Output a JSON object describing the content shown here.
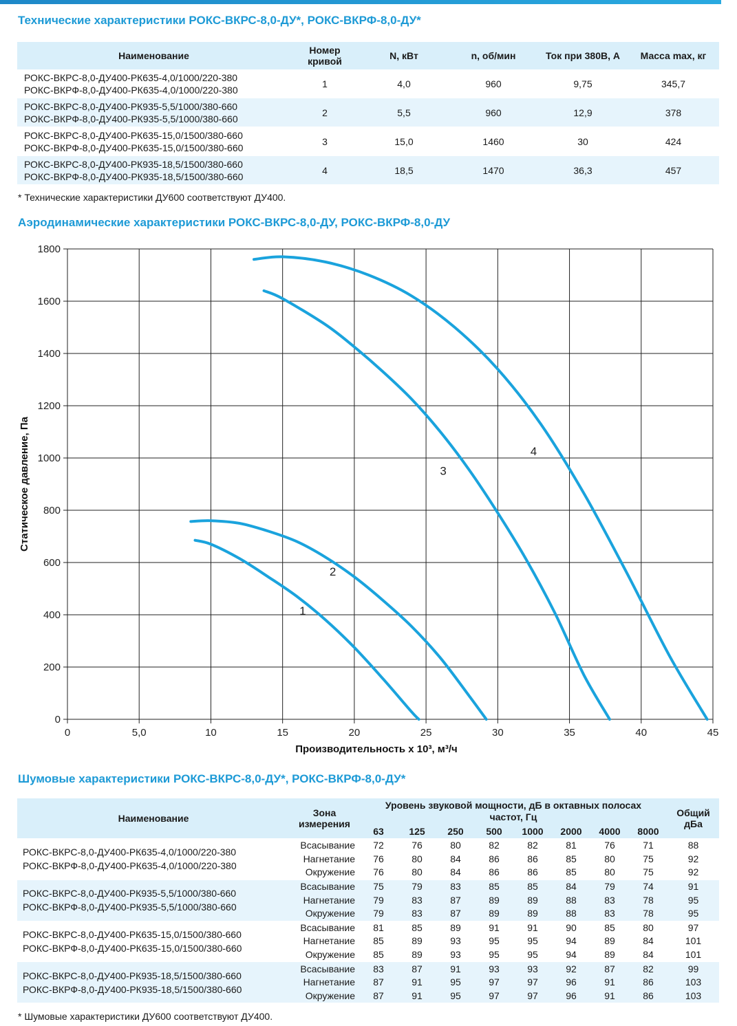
{
  "tech": {
    "title": "Технические характеристики РОКС-ВКРС-8,0-ДУ*, РОКС-ВКРФ-8,0-ДУ*",
    "headers": {
      "name": "Наименование",
      "curve_line1": "Номер",
      "curve_line2": "кривой",
      "power": "N, кВт",
      "rpm": "n, об/мин",
      "current": "Ток при 380В, А",
      "mass": "Масса max, кг"
    },
    "rows": [
      {
        "name1": "РОКС-ВКРС-8,0-ДУ400-РК635-4,0/1000/220-380",
        "name2": "РОКС-ВКРФ-8,0-ДУ400-РК635-4,0/1000/220-380",
        "curve": "1",
        "power": "4,0",
        "rpm": "960",
        "current": "9,75",
        "mass": "345,7"
      },
      {
        "name1": "РОКС-ВКРС-8,0-ДУ400-РК935-5,5/1000/380-660",
        "name2": "РОКС-ВКРФ-8,0-ДУ400-РК935-5,5/1000/380-660",
        "curve": "2",
        "power": "5,5",
        "rpm": "960",
        "current": "12,9",
        "mass": "378"
      },
      {
        "name1": "РОКС-ВКРС-8,0-ДУ400-РК635-15,0/1500/380-660",
        "name2": "РОКС-ВКРФ-8,0-ДУ400-РК635-15,0/1500/380-660",
        "curve": "3",
        "power": "15,0",
        "rpm": "1460",
        "current": "30",
        "mass": "424"
      },
      {
        "name1": "РОКС-ВКРС-8,0-ДУ400-РК935-18,5/1500/380-660",
        "name2": "РОКС-ВКРФ-8,0-ДУ400-РК935-18,5/1500/380-660",
        "curve": "4",
        "power": "18,5",
        "rpm": "1470",
        "current": "36,3",
        "mass": "457"
      }
    ],
    "footnote": "* Технические характеристики ДУ600 соответствуют ДУ400."
  },
  "aero": {
    "title": "Аэродинамические характеристики РОКС-ВКРС-8,0-ДУ, РОКС-ВКРФ-8,0-ДУ"
  },
  "chart_data": {
    "type": "line",
    "xlabel": "Производительность x 10³, м³/ч",
    "ylabel": "Статическое давление, Па",
    "xlim": [
      0,
      45
    ],
    "ylim": [
      0,
      1800
    ],
    "x_ticks": [
      "0",
      "5,0",
      "10",
      "15",
      "20",
      "25",
      "30",
      "35",
      "40",
      "45"
    ],
    "y_ticks": [
      "0",
      "200",
      "400",
      "600",
      "800",
      "1000",
      "1200",
      "1400",
      "1600",
      "1800"
    ],
    "grid": true,
    "line_color": "#1aa3dd",
    "series": [
      {
        "name": "1",
        "label_at": [
          16.4,
          400
        ],
        "x": [
          8.9,
          10,
          12,
          14,
          16,
          18,
          20,
          22,
          24,
          24.5
        ],
        "y": [
          685,
          670,
          615,
          545,
          470,
          380,
          275,
          155,
          28,
          0
        ]
      },
      {
        "name": "2",
        "label_at": [
          18.5,
          550
        ],
        "x": [
          8.6,
          10,
          12,
          14,
          16,
          18,
          20,
          22,
          24,
          26,
          28,
          29.2
        ],
        "y": [
          757,
          760,
          750,
          720,
          680,
          620,
          545,
          455,
          355,
          235,
          90,
          0
        ]
      },
      {
        "name": "3",
        "label_at": [
          26.2,
          935
        ],
        "x": [
          13.7,
          15,
          18,
          20,
          22,
          24,
          26,
          28,
          30,
          32,
          34,
          36,
          37.8
        ],
        "y": [
          1640,
          1610,
          1510,
          1425,
          1330,
          1225,
          1100,
          955,
          790,
          610,
          405,
          170,
          0
        ]
      },
      {
        "name": "4",
        "label_at": [
          32.5,
          1010
        ],
        "x": [
          13,
          15,
          18,
          21,
          24,
          27,
          30,
          33,
          36,
          39,
          42,
          44.6
        ],
        "y": [
          1760,
          1770,
          1750,
          1700,
          1620,
          1500,
          1340,
          1130,
          865,
          560,
          240,
          0
        ]
      }
    ]
  },
  "noise": {
    "title": "Шумовые характеристики РОКС-ВКРС-8,0-ДУ*, РОКС-ВКРФ-8,0-ДУ*",
    "headers": {
      "name": "Наименование",
      "zone_line1": "Зона",
      "zone_line2": "измерения",
      "level_line1": "Уровень звуковой мощности, дБ в октавных полосах",
      "level_line2": "частот, Гц",
      "total_line1": "Общий",
      "total_line2": "дБа"
    },
    "freqs": [
      "63",
      "125",
      "250",
      "500",
      "1000",
      "2000",
      "4000",
      "8000"
    ],
    "groups": [
      {
        "name1": "РОКС-ВКРС-8,0-ДУ400-РК635-4,0/1000/220-380",
        "name2": "РОКС-ВКРФ-8,0-ДУ400-РК635-4,0/1000/220-380",
        "rows": [
          {
            "zone": "Всасывание",
            "values": [
              "72",
              "76",
              "80",
              "82",
              "82",
              "81",
              "76",
              "71"
            ],
            "total": "88"
          },
          {
            "zone": "Нагнетание",
            "values": [
              "76",
              "80",
              "84",
              "86",
              "86",
              "85",
              "80",
              "75"
            ],
            "total": "92"
          },
          {
            "zone": "Окружение",
            "values": [
              "76",
              "80",
              "84",
              "86",
              "86",
              "85",
              "80",
              "75"
            ],
            "total": "92"
          }
        ]
      },
      {
        "name1": "РОКС-ВКРС-8,0-ДУ400-РК935-5,5/1000/380-660",
        "name2": "РОКС-ВКРФ-8,0-ДУ400-РК935-5,5/1000/380-660",
        "rows": [
          {
            "zone": "Всасывание",
            "values": [
              "75",
              "79",
              "83",
              "85",
              "85",
              "84",
              "79",
              "74"
            ],
            "total": "91"
          },
          {
            "zone": "Нагнетание",
            "values": [
              "79",
              "83",
              "87",
              "89",
              "89",
              "88",
              "83",
              "78"
            ],
            "total": "95"
          },
          {
            "zone": "Окружение",
            "values": [
              "79",
              "83",
              "87",
              "89",
              "89",
              "88",
              "83",
              "78"
            ],
            "total": "95"
          }
        ]
      },
      {
        "name1": "РОКС-ВКРС-8,0-ДУ400-РК635-15,0/1500/380-660",
        "name2": "РОКС-ВКРФ-8,0-ДУ400-РК635-15,0/1500/380-660",
        "rows": [
          {
            "zone": "Всасывание",
            "values": [
              "81",
              "85",
              "89",
              "91",
              "91",
              "90",
              "85",
              "80"
            ],
            "total": "97"
          },
          {
            "zone": "Нагнетание",
            "values": [
              "85",
              "89",
              "93",
              "95",
              "95",
              "94",
              "89",
              "84"
            ],
            "total": "101"
          },
          {
            "zone": "Окружение",
            "values": [
              "85",
              "89",
              "93",
              "95",
              "95",
              "94",
              "89",
              "84"
            ],
            "total": "101"
          }
        ]
      },
      {
        "name1": "РОКС-ВКРС-8,0-ДУ400-РК935-18,5/1500/380-660",
        "name2": "РОКС-ВКРФ-8,0-ДУ400-РК935-18,5/1500/380-660",
        "rows": [
          {
            "zone": "Всасывание",
            "values": [
              "83",
              "87",
              "91",
              "93",
              "93",
              "92",
              "87",
              "82"
            ],
            "total": "99"
          },
          {
            "zone": "Нагнетание",
            "values": [
              "87",
              "91",
              "95",
              "97",
              "97",
              "96",
              "91",
              "86"
            ],
            "total": "103"
          },
          {
            "zone": "Окружение",
            "values": [
              "87",
              "91",
              "95",
              "97",
              "97",
              "96",
              "91",
              "86"
            ],
            "total": "103"
          }
        ]
      }
    ],
    "footnote": "* Шумовые характеристики ДУ600 соответствуют ДУ400."
  }
}
